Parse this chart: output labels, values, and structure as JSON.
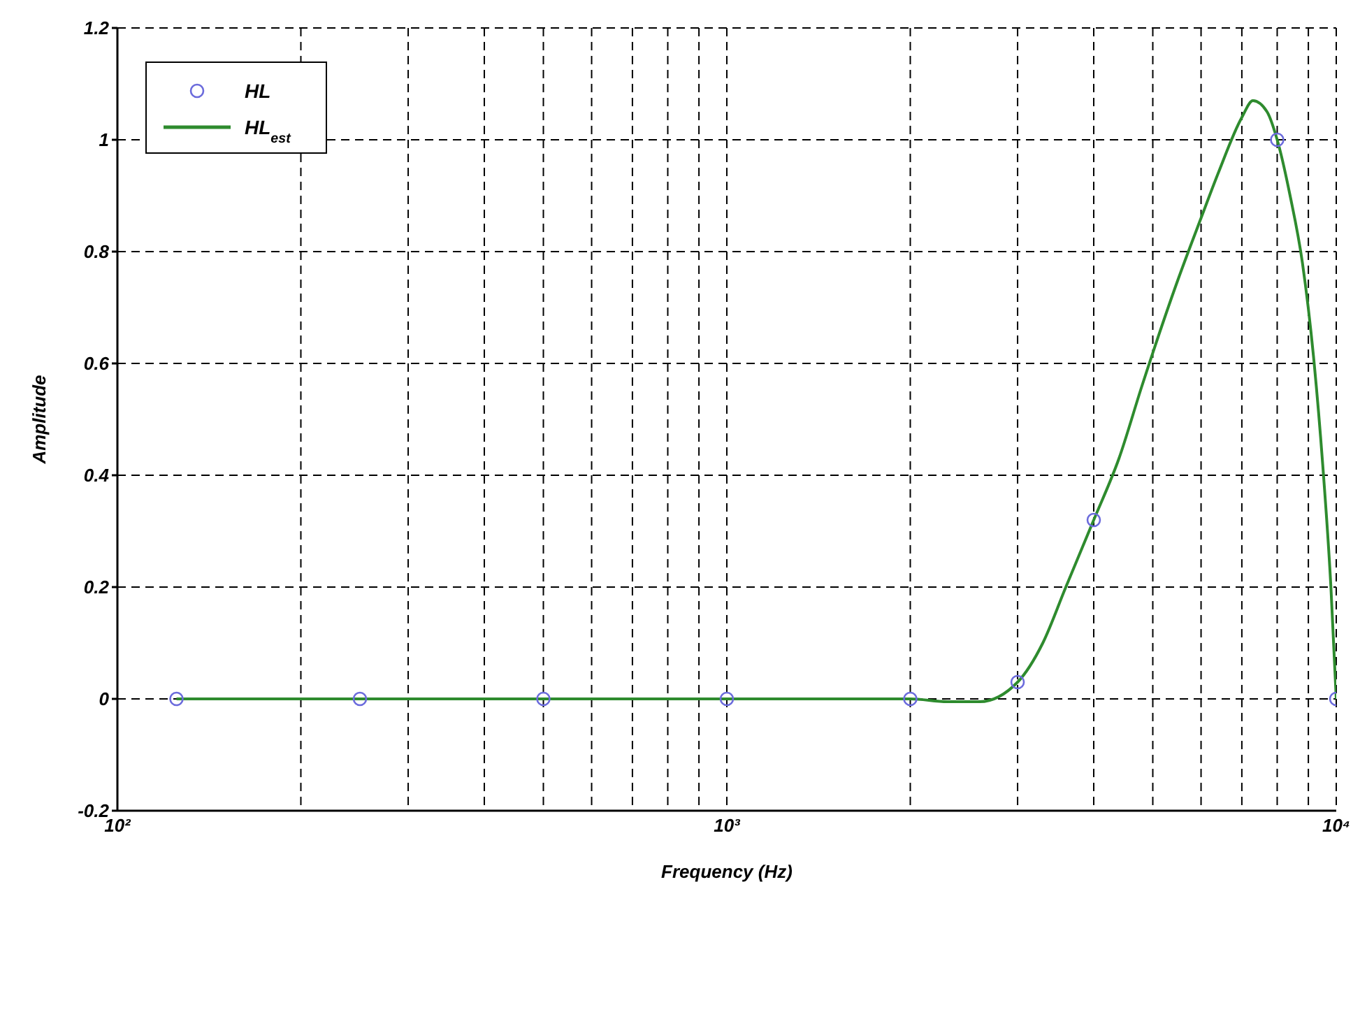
{
  "chart_data": {
    "type": "line",
    "xlabel": "Frequency (Hz)",
    "ylabel": "Amplitude",
    "log": "x",
    "xlim": [
      100,
      10000
    ],
    "ylim": [
      -0.2,
      1.2
    ],
    "xticks": [
      {
        "value": 100,
        "label": "10²"
      },
      {
        "value": 200,
        "label": null
      },
      {
        "value": 300,
        "label": null
      },
      {
        "value": 400,
        "label": null
      },
      {
        "value": 500,
        "label": null
      },
      {
        "value": 600,
        "label": null
      },
      {
        "value": 700,
        "label": null
      },
      {
        "value": 800,
        "label": null
      },
      {
        "value": 900,
        "label": null
      },
      {
        "value": 1000,
        "label": "10³"
      },
      {
        "value": 2000,
        "label": null
      },
      {
        "value": 3000,
        "label": null
      },
      {
        "value": 4000,
        "label": null
      },
      {
        "value": 5000,
        "label": null
      },
      {
        "value": 6000,
        "label": null
      },
      {
        "value": 7000,
        "label": null
      },
      {
        "value": 8000,
        "label": null
      },
      {
        "value": 9000,
        "label": null
      },
      {
        "value": 10000,
        "label": "10⁴"
      }
    ],
    "yticks": [
      -0.2,
      0,
      0.2,
      0.4,
      0.6,
      0.8,
      1,
      1.2
    ],
    "grid": true,
    "legend": "top left",
    "line_style": "dashed",
    "series": [
      {
        "name": "HL",
        "type": "scatter",
        "marker": "circle",
        "color": "#6b6bdc",
        "x": [
          125,
          250,
          500,
          1000,
          2000,
          3000,
          4000,
          8000,
          10000
        ],
        "values": [
          0,
          0,
          0,
          0,
          0,
          0.03,
          0.32,
          1.0,
          0
        ]
      },
      {
        "name": "HL$_{est}$",
        "marker": "none",
        "line_style": "solid",
        "color": "#2e8b2e",
        "x": [
          125,
          250,
          500,
          1000,
          1500,
          2000,
          2300,
          2600,
          3000,
          3300,
          3600,
          4000,
          4400,
          4800,
          5500,
          6000,
          6400,
          7000,
          7300,
          7700,
          8000,
          8400,
          8800,
          9200,
          9500,
          9800,
          10000
        ],
        "values": [
          0,
          0,
          0,
          0,
          0,
          0,
          -0.005,
          -0.005,
          0.03,
          0.1,
          0.2,
          0.32,
          0.43,
          0.56,
          0.75,
          0.86,
          0.94,
          1.04,
          1.07,
          1.05,
          1.0,
          0.9,
          0.78,
          0.6,
          0.42,
          0.2,
          0
        ]
      }
    ]
  }
}
